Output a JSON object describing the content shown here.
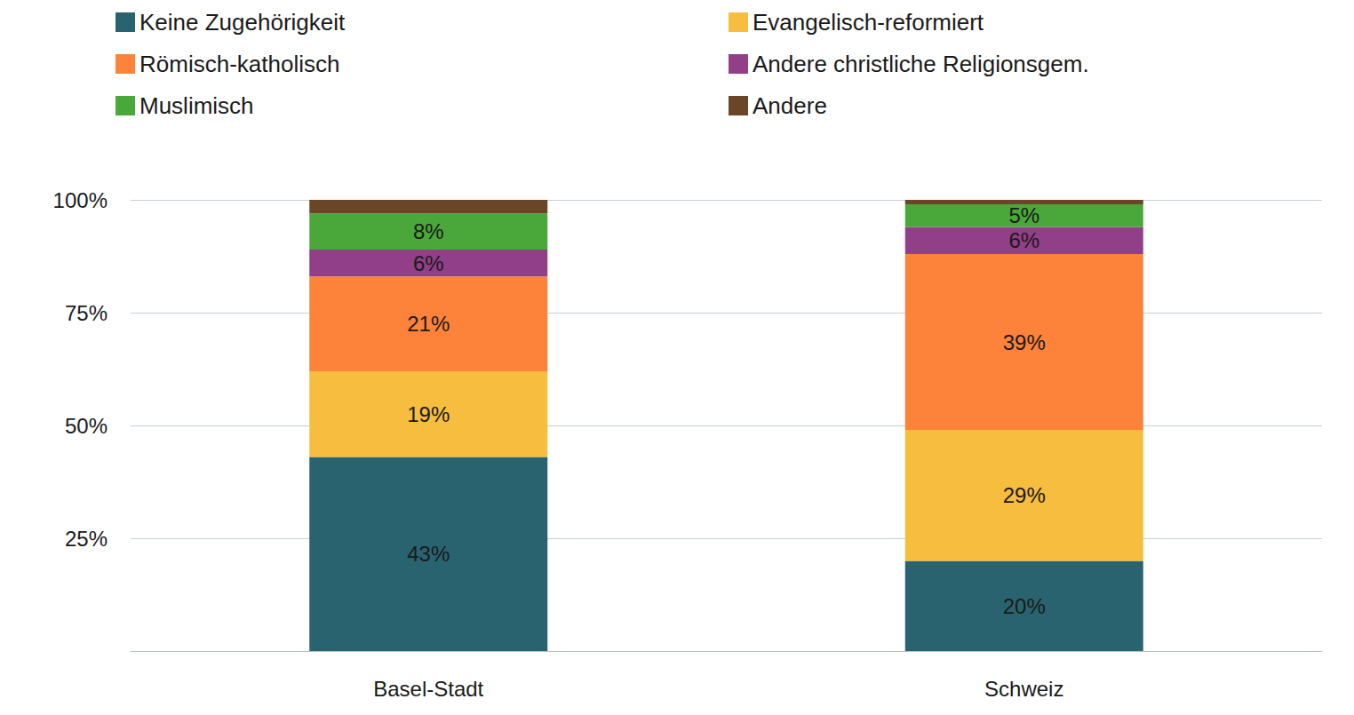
{
  "chart_data": {
    "type": "bar",
    "stacked": true,
    "data_labels": true,
    "grid": true,
    "legend": "top",
    "categories": [
      "Basel-Stadt",
      "Schweiz"
    ],
    "ylim": [
      0,
      100
    ],
    "yticks": [
      {
        "value": 25,
        "label": "25%"
      },
      {
        "value": 50,
        "label": "50%"
      },
      {
        "value": 75,
        "label": "75%"
      },
      {
        "value": 100,
        "label": "100%"
      }
    ],
    "series": [
      {
        "name": "Keine Zugehörigkeit",
        "color": "#2a6370",
        "values": [
          43,
          20
        ],
        "value_labels": [
          "43%",
          "20%"
        ]
      },
      {
        "name": "Evangelisch-reformiert",
        "color": "#f6bd3e",
        "values": [
          19,
          29
        ],
        "value_labels": [
          "19%",
          "29%"
        ]
      },
      {
        "name": "Römisch-katholisch",
        "color": "#fd823a",
        "values": [
          21,
          39
        ],
        "value_labels": [
          "21%",
          "39%"
        ]
      },
      {
        "name": "Andere christliche Religionsgem.",
        "color": "#913f87",
        "values": [
          6,
          6
        ],
        "value_labels": [
          "6%",
          "6%"
        ]
      },
      {
        "name": "Muslimisch",
        "color": "#4aa83a",
        "values": [
          8,
          5
        ],
        "value_labels": [
          "8%",
          "5%"
        ]
      },
      {
        "name": "Andere",
        "color": "#6b4527",
        "values": [
          3,
          1
        ],
        "value_labels": [
          null,
          null
        ],
        "data_labels": false
      }
    ]
  }
}
